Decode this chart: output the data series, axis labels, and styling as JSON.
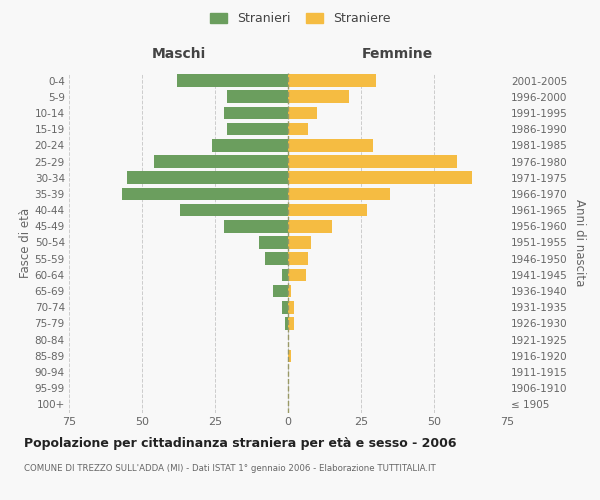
{
  "age_groups": [
    "100+",
    "95-99",
    "90-94",
    "85-89",
    "80-84",
    "75-79",
    "70-74",
    "65-69",
    "60-64",
    "55-59",
    "50-54",
    "45-49",
    "40-44",
    "35-39",
    "30-34",
    "25-29",
    "20-24",
    "15-19",
    "10-14",
    "5-9",
    "0-4"
  ],
  "birth_years": [
    "≤ 1905",
    "1906-1910",
    "1911-1915",
    "1916-1920",
    "1921-1925",
    "1926-1930",
    "1931-1935",
    "1936-1940",
    "1941-1945",
    "1946-1950",
    "1951-1955",
    "1956-1960",
    "1961-1965",
    "1966-1970",
    "1971-1975",
    "1976-1980",
    "1981-1985",
    "1986-1990",
    "1991-1995",
    "1996-2000",
    "2001-2005"
  ],
  "males": [
    0,
    0,
    0,
    0,
    0,
    1,
    2,
    5,
    2,
    8,
    10,
    22,
    37,
    57,
    55,
    46,
    26,
    21,
    22,
    21,
    38
  ],
  "females": [
    0,
    0,
    0,
    1,
    0,
    2,
    2,
    1,
    6,
    7,
    8,
    15,
    27,
    35,
    63,
    58,
    29,
    7,
    10,
    21,
    30
  ],
  "male_color": "#6b9e5e",
  "female_color": "#f5bc42",
  "title": "Popolazione per cittadinanza straniera per età e sesso - 2006",
  "subtitle": "COMUNE DI TREZZO SULL'ADDA (MI) - Dati ISTAT 1° gennaio 2006 - Elaborazione TUTTITALIA.IT",
  "left_label": "Maschi",
  "right_label": "Femmine",
  "y_left_label": "Fasce di età",
  "y_right_label": "Anni di nascita",
  "legend_male": "Stranieri",
  "legend_female": "Straniere",
  "xlim": 75,
  "background_color": "#f8f8f8",
  "grid_color": "#cccccc"
}
